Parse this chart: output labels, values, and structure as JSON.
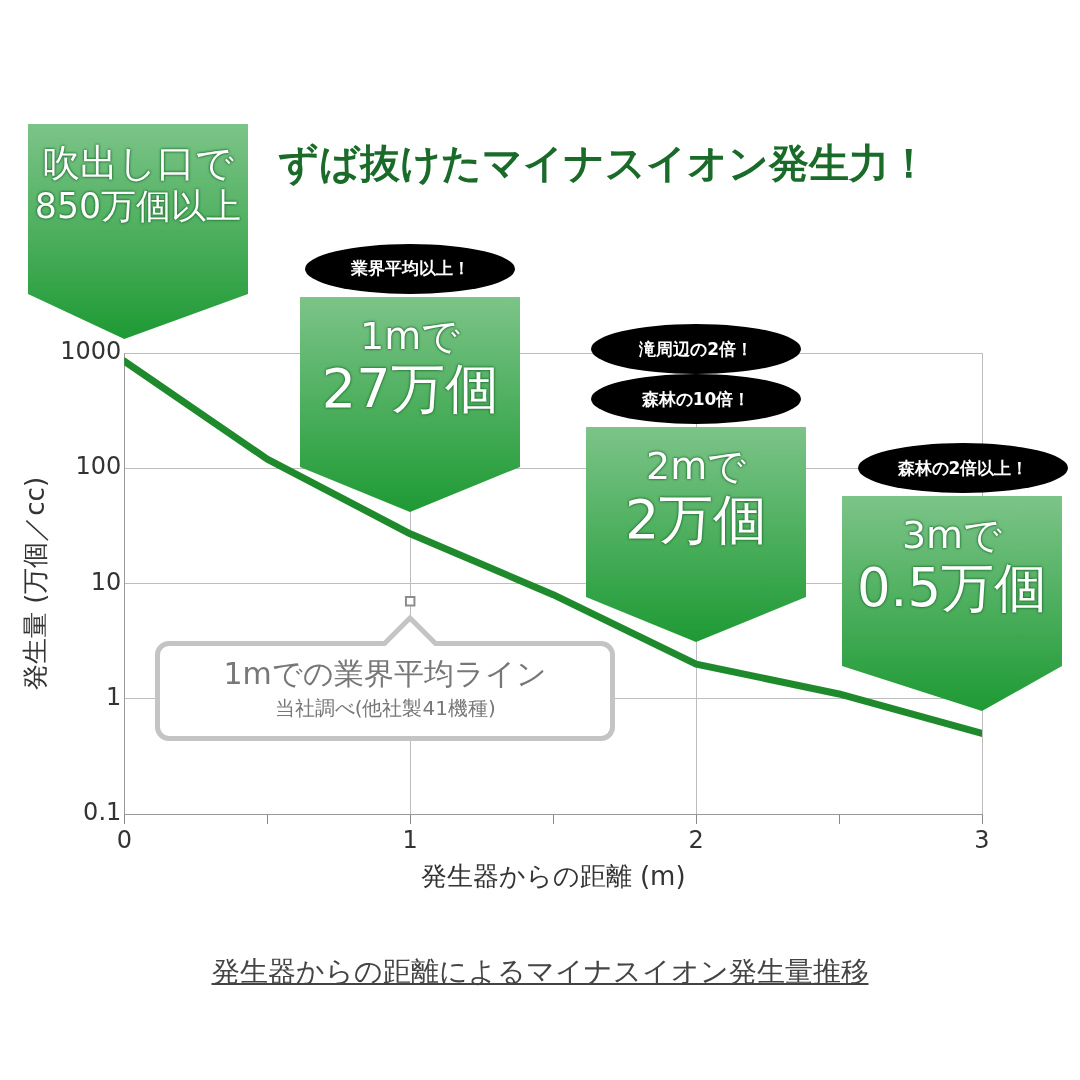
{
  "chart_data": {
    "type": "line",
    "title": "ずば抜けたマイナスイオン発生力！",
    "xlabel": "発生器からの距離 (m)",
    "ylabel": "発生量 (万個／cc)",
    "x": [
      0,
      0.5,
      1,
      1.5,
      2,
      2.5,
      3
    ],
    "series": [
      {
        "color": "#1e8a2c",
        "values": [
          850,
          120,
          27,
          8,
          2,
          1.1,
          0.5
        ],
        "marker": "none"
      },
      {
        "type": "scatter",
        "x": [
          1
        ],
        "values": [
          7
        ],
        "color": "#8c8c8c",
        "marker": "square"
      }
    ],
    "xlim": [
      0,
      3
    ],
    "ylim": [
      0.1,
      1000
    ],
    "xticks": [
      0,
      {
        "value": 0.5,
        "label": null
      },
      1,
      {
        "value": 1.5,
        "label": null
      },
      2,
      {
        "value": 2.5,
        "label": null
      },
      3
    ],
    "yticks": [
      0.1,
      1,
      10,
      100,
      1000
    ],
    "log": "y",
    "grid": true,
    "legend": false,
    "annotations": [
      "吹出し口で\n850万個以上",
      "業界平均以上！",
      {
        "text": "1mで\n27万個",
        "x": 1,
        "y": 27
      },
      "滝周辺の2倍！",
      "森林の10倍！",
      {
        "text": "2mで\n2万個",
        "x": 2,
        "y": 2
      },
      "森林の2倍以上！",
      {
        "text": "3mで\n0.5万個",
        "x": 3,
        "y": 0.5
      },
      {
        "text": "1mでの業界平均ライン",
        "x": 1,
        "y": 7
      },
      "当社調べ(他社製41機種)",
      "発生器からの距離によるマイナスイオン発生量推移"
    ]
  }
}
